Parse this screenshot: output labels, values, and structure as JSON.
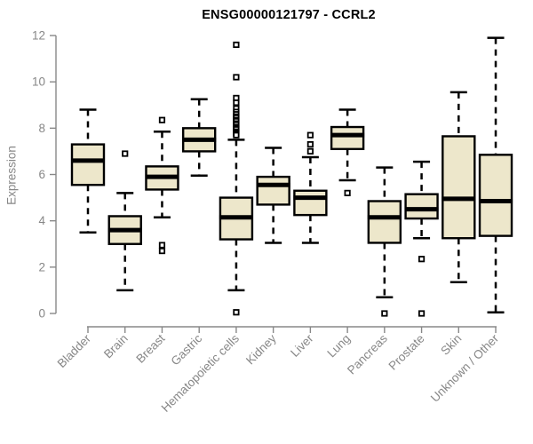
{
  "window": {
    "background": "#ffffff"
  },
  "colors": {
    "box_fill": "#EDE7CB",
    "box_stroke": "#000000",
    "median_color": "#000000",
    "whisker_color": "#000000",
    "outlier_color": "#000000",
    "axis_color": "#888888",
    "tick_label_color": "#878787",
    "title_color": "#000000"
  },
  "chart_data": {
    "type": "boxplot",
    "title": "ENSG00000121797 - CCRL2",
    "xlabel": "",
    "ylabel": "Expression",
    "ylim": [
      0,
      12
    ],
    "yticks": [
      0,
      2,
      4,
      6,
      8,
      10,
      12
    ],
    "grid": false,
    "legend": "none",
    "categories": [
      "Bladder",
      "Brain",
      "Breast",
      "Gastric",
      "Hematopoietic cells",
      "Kidney",
      "Liver",
      "Lung",
      "Pancreas",
      "Prostate",
      "Skin",
      "Unknown / Other"
    ],
    "series": [
      {
        "name": "Bladder",
        "whisker_low": 3.5,
        "q1": 5.55,
        "median": 6.6,
        "q3": 7.3,
        "whisker_high": 8.8,
        "outliers": []
      },
      {
        "name": "Brain",
        "whisker_low": 1.0,
        "q1": 3.0,
        "median": 3.6,
        "q3": 4.2,
        "whisker_high": 5.2,
        "outliers": [
          6.9
        ]
      },
      {
        "name": "Breast",
        "whisker_low": 4.15,
        "q1": 5.35,
        "median": 5.9,
        "q3": 6.35,
        "whisker_high": 7.85,
        "outliers": [
          8.35,
          2.95,
          2.7
        ]
      },
      {
        "name": "Gastric",
        "whisker_low": 5.95,
        "q1": 7.0,
        "median": 7.5,
        "q3": 8.0,
        "whisker_high": 9.25,
        "outliers": []
      },
      {
        "name": "Hematopoietic cells",
        "whisker_low": 1.0,
        "q1": 3.2,
        "median": 4.15,
        "q3": 5.0,
        "whisker_high": 7.5,
        "outliers": [
          11.6,
          10.2,
          9.3,
          9.1,
          8.85,
          8.7,
          8.6,
          8.5,
          8.45,
          8.35,
          8.3,
          8.2,
          8.15,
          8.05,
          8.0,
          7.95,
          7.85,
          7.8,
          7.75,
          7.7,
          0.05
        ]
      },
      {
        "name": "Kidney",
        "whisker_low": 3.05,
        "q1": 4.7,
        "median": 5.55,
        "q3": 5.9,
        "whisker_high": 7.15,
        "outliers": []
      },
      {
        "name": "Liver",
        "whisker_low": 3.05,
        "q1": 4.25,
        "median": 5.0,
        "q3": 5.3,
        "whisker_high": 6.75,
        "outliers": [
          7.7,
          7.3,
          7.0
        ]
      },
      {
        "name": "Lung",
        "whisker_low": 5.75,
        "q1": 7.1,
        "median": 7.7,
        "q3": 8.05,
        "whisker_high": 8.8,
        "outliers": [
          5.2
        ]
      },
      {
        "name": "Pancreas",
        "whisker_low": 0.7,
        "q1": 3.05,
        "median": 4.15,
        "q3": 4.85,
        "whisker_high": 6.3,
        "outliers": [
          0.0
        ]
      },
      {
        "name": "Prostate",
        "whisker_low": 3.25,
        "q1": 4.1,
        "median": 4.5,
        "q3": 5.15,
        "whisker_high": 6.55,
        "outliers": [
          2.35,
          0.0
        ]
      },
      {
        "name": "Skin",
        "whisker_low": 1.35,
        "q1": 3.25,
        "median": 4.95,
        "q3": 7.65,
        "whisker_high": 9.55,
        "outliers": []
      },
      {
        "name": "Unknown / Other",
        "whisker_low": 0.05,
        "q1": 3.35,
        "median": 4.85,
        "q3": 6.85,
        "whisker_high": 11.9,
        "outliers": []
      }
    ]
  }
}
